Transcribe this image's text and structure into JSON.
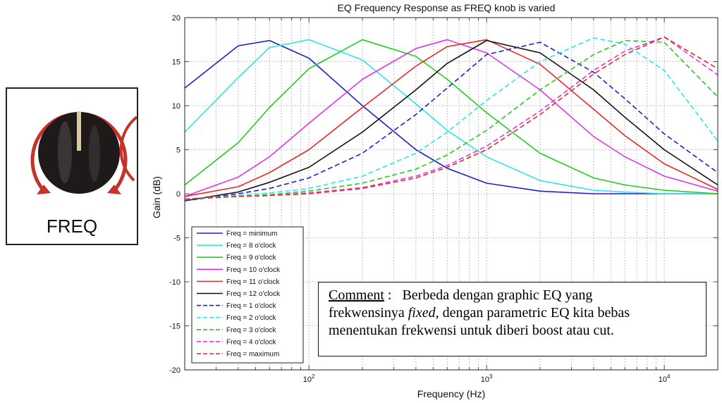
{
  "knob": {
    "label": "FREQ",
    "colors": {
      "arc": "#c8302a",
      "body": "#1e1a1a",
      "pointer": "#d9c9a0"
    }
  },
  "comment": {
    "label": "Comment",
    "sep": " :   ",
    "text1": "Berbeda dengan graphic EQ yang",
    "text2a": "frekwensinya ",
    "text2em": "fixed",
    "text2b": ", dengan parametric EQ kita bebas",
    "text3": "menentukan frekwensi untuk diberi boost atau cut."
  },
  "chart_data": {
    "type": "line",
    "title": "EQ Frequency Response as FREQ knob is varied",
    "xlabel": "Frequency (Hz)",
    "ylabel": "Gain (dB)",
    "x_scale": "log",
    "xlim": [
      20,
      20000
    ],
    "ylim": [
      -20,
      20
    ],
    "yticks": [
      -20,
      -15,
      -10,
      -5,
      0,
      5,
      10,
      15,
      20
    ],
    "xticks": [
      {
        "value": 100,
        "base": "10",
        "exp": "2"
      },
      {
        "value": 1000,
        "base": "10",
        "exp": "3"
      },
      {
        "value": 10000,
        "base": "10",
        "exp": "4"
      }
    ],
    "grid": true,
    "legend": "bottom-left",
    "x": [
      20,
      40,
      60,
      100,
      200,
      400,
      600,
      1000,
      2000,
      4000,
      6000,
      10000,
      20000
    ],
    "series": [
      {
        "name": "Freq = minimum",
        "color": "#1f1fc8",
        "dash": false,
        "values": [
          12.0,
          16.8,
          17.4,
          15.4,
          10.0,
          5.0,
          2.9,
          1.2,
          0.3,
          0.0,
          0.0,
          0.0,
          0.0
        ]
      },
      {
        "name": "Freq = 8 o'clock",
        "color": "#2ee6e6",
        "dash": false,
        "values": [
          7.0,
          13.2,
          16.6,
          17.5,
          15.2,
          10.2,
          7.2,
          4.2,
          1.5,
          0.4,
          0.2,
          0.0,
          0.0
        ]
      },
      {
        "name": "Freq = 9 o'clock",
        "color": "#22cc22",
        "dash": false,
        "values": [
          1.0,
          5.8,
          9.8,
          14.2,
          17.5,
          15.6,
          13.0,
          9.2,
          4.6,
          1.8,
          1.0,
          0.4,
          0.0
        ]
      },
      {
        "name": "Freq = 10 o'clock",
        "color": "#e633e6",
        "dash": false,
        "values": [
          -0.3,
          1.9,
          4.2,
          8.0,
          13.0,
          16.5,
          17.5,
          16.0,
          11.8,
          6.5,
          4.2,
          2.0,
          0.3
        ]
      },
      {
        "name": "Freq = 11 o'clock",
        "color": "#e62a2a",
        "dash": false,
        "values": [
          -0.3,
          0.8,
          2.4,
          5.0,
          9.8,
          14.5,
          16.7,
          17.5,
          14.7,
          9.6,
          6.6,
          3.4,
          0.5
        ]
      },
      {
        "name": "Freq = 12 o'clock",
        "color": "#111111",
        "dash": false,
        "values": [
          -0.8,
          0.2,
          1.3,
          3.0,
          7.0,
          11.8,
          14.8,
          17.4,
          16.0,
          11.8,
          8.7,
          5.0,
          1.0
        ]
      },
      {
        "name": "Freq = 1 o'clock",
        "color": "#1f1fc8",
        "dash": true,
        "values": [
          -0.8,
          0.0,
          0.6,
          1.8,
          4.6,
          9.0,
          12.0,
          15.8,
          17.2,
          13.8,
          10.8,
          6.8,
          2.4
        ]
      },
      {
        "name": "Freq = 2 o'clock",
        "color": "#2ee6e6",
        "dash": true,
        "values": [
          -0.6,
          -0.2,
          0.1,
          0.6,
          2.0,
          4.6,
          7.0,
          10.6,
          15.0,
          17.7,
          17.0,
          14.0,
          6.0
        ]
      },
      {
        "name": "Freq = 3 o'clock",
        "color": "#22cc22",
        "dash": true,
        "values": [
          -0.6,
          -0.3,
          -0.1,
          0.3,
          1.2,
          2.8,
          4.4,
          7.2,
          11.8,
          15.8,
          17.4,
          17.2,
          11.0
        ]
      },
      {
        "name": "Freq = 4 o'clock",
        "color": "#e633e6",
        "dash": true,
        "values": [
          -0.6,
          -0.3,
          -0.2,
          0.1,
          0.7,
          2.0,
          3.2,
          5.4,
          9.4,
          14.0,
          16.2,
          17.8,
          13.5
        ]
      },
      {
        "name": "Freq = maximum",
        "color": "#e62a2a",
        "dash": true,
        "values": [
          -0.6,
          -0.3,
          -0.2,
          0.0,
          0.6,
          1.8,
          3.0,
          5.0,
          9.0,
          13.6,
          15.8,
          17.8,
          14.2
        ]
      }
    ]
  }
}
